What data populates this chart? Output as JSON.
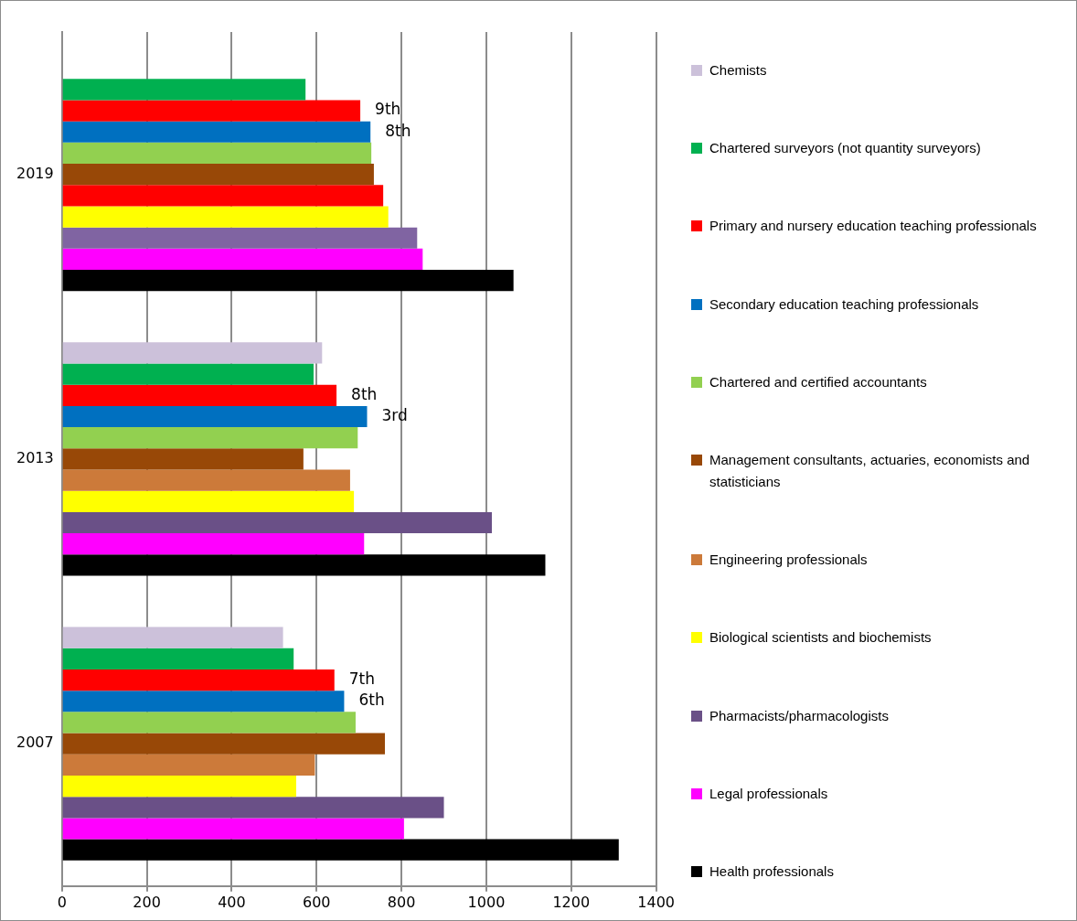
{
  "chart_data": {
    "type": "bar",
    "orientation": "horizontal",
    "categories": [
      "2019",
      "2013",
      "2007"
    ],
    "series": [
      {
        "name": "Chemists",
        "color": "#ccc1da",
        "values": [
          null,
          613,
          521
        ]
      },
      {
        "name": "Chartered surveyors (not quantity surveyors)",
        "color": "#00b050",
        "values": [
          574,
          593,
          546
        ]
      },
      {
        "name": "Primary and nursery education teaching professionals",
        "color": "#ff0000",
        "values": [
          703,
          647,
          642
        ]
      },
      {
        "name": "Secondary education teaching professionals",
        "color": "#0070c0",
        "values": [
          727,
          719,
          665
        ]
      },
      {
        "name": "Chartered and certified accountants",
        "color": "#92d050",
        "values": [
          729,
          697,
          692
        ]
      },
      {
        "name": "Management consultants, actuaries, economists and statisticians",
        "color": "#984807",
        "values": [
          735,
          569,
          761
        ]
      },
      {
        "name": "Engineering professionals",
        "color": "#cc7a3a",
        "colors": [
          "#ff0000",
          "#cc7a3a",
          "#cc7a3a"
        ],
        "values": [
          757,
          679,
          596
        ]
      },
      {
        "name": "Biological scientists and biochemists",
        "color": "#ffff00",
        "values": [
          769,
          688,
          552
        ]
      },
      {
        "name": "Pharmacists/pharmacologists",
        "color": "#6a5087",
        "colors": [
          "#8064a2",
          "#6a5087",
          "#6a5087"
        ],
        "values": [
          837,
          1013,
          900
        ]
      },
      {
        "name": "Legal professionals",
        "color": "#ff00ff",
        "values": [
          850,
          712,
          806
        ]
      },
      {
        "name": "Health professionals",
        "color": "#000000",
        "values": [
          1064,
          1139,
          1312
        ]
      }
    ],
    "annotations": [
      "9th",
      "8th",
      "8th",
      "3rd",
      "7th",
      "6th"
    ],
    "xlim": [
      0,
      1400
    ],
    "xticks": [
      0,
      200,
      400,
      600,
      800,
      1000,
      1200,
      1400
    ],
    "grid": "x",
    "legend": "right"
  }
}
